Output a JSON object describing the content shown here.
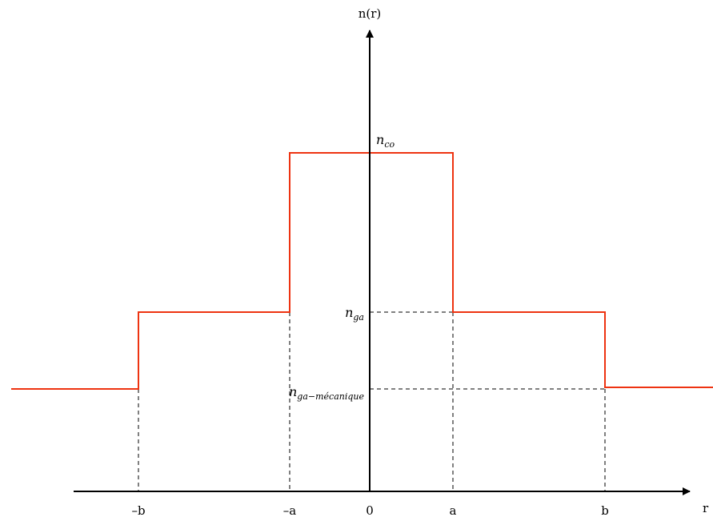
{
  "axes": {
    "y_label": "n(r)",
    "x_label": "r"
  },
  "x_ticks": [
    "–b",
    "–a",
    "0",
    "a",
    "b"
  ],
  "levels": {
    "n_co": {
      "base": "n",
      "sub": "co"
    },
    "n_ga": {
      "base": "n",
      "sub": "ga"
    },
    "n_ga_meca": {
      "base": "n",
      "sub": "ga−mécanique"
    }
  },
  "colors": {
    "profile": "#ee3311",
    "axis": "#000000",
    "guide": "#000000"
  }
}
